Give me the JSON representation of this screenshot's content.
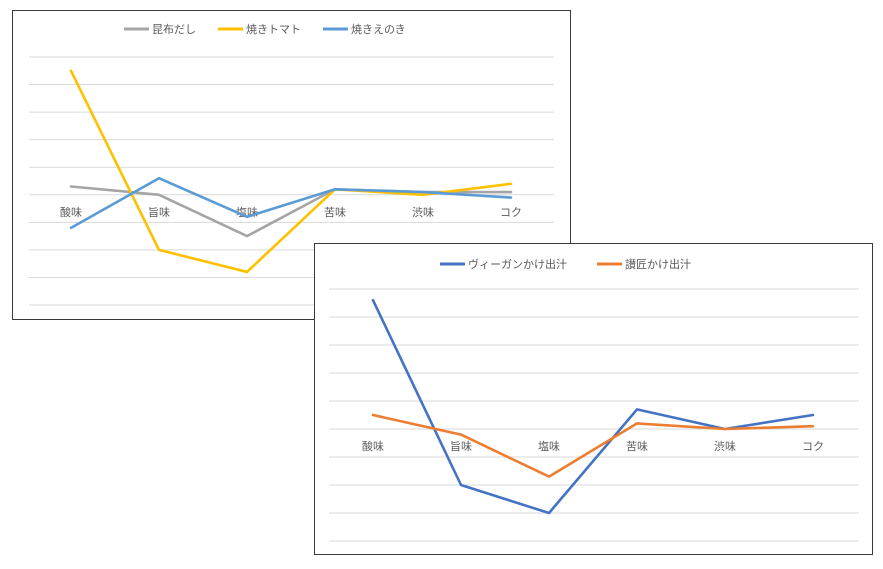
{
  "chart_data": [
    {
      "type": "line",
      "categories": [
        "酸味",
        "旨味",
        "塩味",
        "苦味",
        "渋味",
        "コク"
      ],
      "series": [
        {
          "name": "昆布だし",
          "color": "#a5a5a5",
          "values": [
            0.3,
            0.0,
            -1.5,
            0.2,
            0.1,
            0.1
          ]
        },
        {
          "name": "焼きトマト",
          "color": "#ffc000",
          "values": [
            4.5,
            -2.0,
            -2.8,
            0.2,
            0.0,
            0.4
          ]
        },
        {
          "name": "焼きえのき",
          "color": "#5b9bd5",
          "values": [
            -1.2,
            0.6,
            -0.8,
            0.2,
            0.1,
            -0.1
          ]
        }
      ],
      "ylim": [
        -4,
        5
      ],
      "grid": true,
      "legend": "top"
    },
    {
      "type": "line",
      "categories": [
        "酸味",
        "旨味",
        "塩味",
        "苦味",
        "渋味",
        "コク"
      ],
      "series": [
        {
          "name": "ヴィーガンかけ出汁",
          "color": "#4472c4",
          "values": [
            4.6,
            -2.0,
            -3.0,
            0.7,
            0.0,
            0.5
          ]
        },
        {
          "name": "讃匠かけ出汁",
          "color": "#ed7d31",
          "values": [
            0.5,
            -0.2,
            -1.7,
            0.2,
            0.0,
            0.1
          ]
        }
      ],
      "ylim": [
        -4,
        5
      ],
      "grid": true,
      "legend": "top"
    }
  ]
}
